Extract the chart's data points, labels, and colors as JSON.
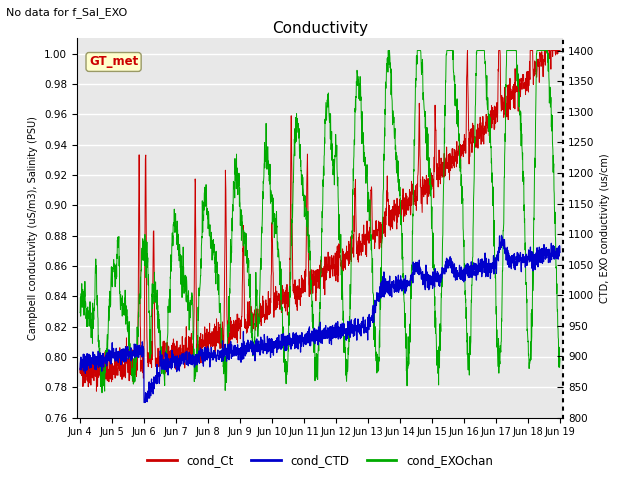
{
  "title": "Conductivity",
  "subtitle": "No data for f_Sal_EXO",
  "ylabel_left": "Campbell conductivity (uS/m3), Salinity (PSU)",
  "ylabel_right": "CTD, EXO conductivity (us/cm)",
  "ylim_left": [
    0.76,
    1.01
  ],
  "ylim_right": [
    800,
    1420
  ],
  "yticks_left": [
    0.76,
    0.78,
    0.8,
    0.82,
    0.84,
    0.86,
    0.88,
    0.9,
    0.92,
    0.94,
    0.96,
    0.98,
    1.0
  ],
  "yticks_right": [
    800,
    850,
    900,
    950,
    1000,
    1050,
    1100,
    1150,
    1200,
    1250,
    1300,
    1350,
    1400
  ],
  "xtick_labels": [
    "Jun 4",
    "Jun 5",
    "Jun 6",
    "Jun 7",
    "Jun 8",
    "Jun 9",
    "Jun 10",
    "Jun 11",
    "Jun 12",
    "Jun 13",
    "Jun 14",
    "Jun 15",
    "Jun 16",
    "Jun 17",
    "Jun 18",
    "Jun 19"
  ],
  "bg_color": "#ffffff",
  "plot_bg": "#e8e8e8",
  "legend_labels": [
    "cond_Ct",
    "cond_CTD",
    "cond_EXOchan"
  ],
  "legend_colors": [
    "#cc0000",
    "#0000cc",
    "#00aa00"
  ],
  "gt_met_label": "GT_met",
  "gt_met_color": "#cc0000",
  "gt_met_bg": "#ffffcc",
  "right_axis_dotted": true
}
